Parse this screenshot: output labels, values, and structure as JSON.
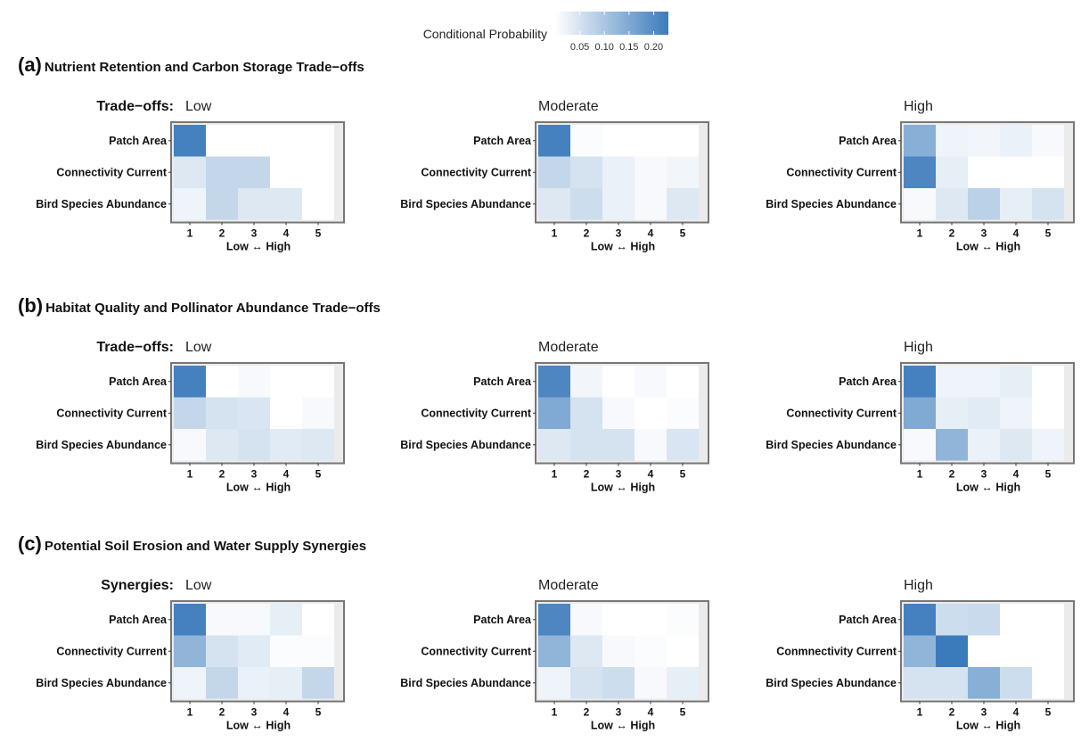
{
  "legend": {
    "title": "Conditional Probability",
    "ticks": [
      "0.05",
      "0.10",
      "0.15",
      "0.20"
    ],
    "colors": {
      "low": "#ffffff",
      "high": "#3c7bbb"
    }
  },
  "chart_data": {
    "type": "heatmap",
    "value_name": "Conditional Probability",
    "scale": [
      0,
      0.23
    ],
    "rows": [
      "Patch Area",
      "Connectivity Current",
      "Bird Species Abundance"
    ],
    "columns": [
      "1",
      "2",
      "3",
      "4",
      "5"
    ],
    "xlabel": "Low ↔ High",
    "panel_groups": [
      {
        "tag": "(a)",
        "title": "Nutrient Retention and Carbon Storage Trade−offs",
        "facet_prefix": "Trade−offs:",
        "panels": [
          {
            "level": "Low",
            "rows": [
              "Patch Area",
              "Connectivity Current",
              "Bird Species Abundance"
            ],
            "values": [
              [
                0.22,
                0,
                0,
                0,
                0
              ],
              [
                0.04,
                0.07,
                0.07,
                0,
                0
              ],
              [
                0.02,
                0.07,
                0.04,
                0.04,
                0
              ]
            ]
          },
          {
            "level": "Moderate",
            "rows": [
              "Patch Area",
              "Connectivity Current",
              "Bird Species Abundance"
            ],
            "values": [
              [
                0.22,
                0.005,
                0,
                0,
                0
              ],
              [
                0.07,
                0.05,
                0.025,
                0.01,
                0.015
              ],
              [
                0.04,
                0.06,
                0.025,
                0.01,
                0.04
              ]
            ]
          },
          {
            "level": "High",
            "rows": [
              "Patch Area",
              "Connectivity Current",
              "Bird Species Abundance"
            ],
            "values": [
              [
                0.14,
                0.02,
                0.015,
                0.025,
                0.01
              ],
              [
                0.21,
                0.03,
                0,
                0,
                0
              ],
              [
                0.01,
                0.04,
                0.08,
                0.03,
                0.05
              ]
            ]
          }
        ]
      },
      {
        "tag": "(b)",
        "title": "Habitat Quality and Pollinator Abundance Trade−offs",
        "facet_prefix": "Trade−offs:",
        "panels": [
          {
            "level": "Low",
            "rows": [
              "Patch Area",
              "Connectivity Current",
              "Bird Species Abundance"
            ],
            "values": [
              [
                0.22,
                0,
                0.01,
                0,
                0
              ],
              [
                0.07,
                0.05,
                0.045,
                0,
                0.01
              ],
              [
                0.01,
                0.04,
                0.05,
                0.035,
                0.04
              ]
            ]
          },
          {
            "level": "Moderate",
            "rows": [
              "Patch Area",
              "Connectivity Current",
              "Bird Species Abundance"
            ],
            "values": [
              [
                0.21,
                0.015,
                0,
                0.01,
                0
              ],
              [
                0.15,
                0.05,
                0.01,
                0,
                0.005
              ],
              [
                0.04,
                0.05,
                0.05,
                0.01,
                0.045
              ]
            ]
          },
          {
            "level": "High",
            "rows": [
              "Patch Area",
              "Connectivity Current",
              "Bird Species Abundance"
            ],
            "values": [
              [
                0.22,
                0.02,
                0.02,
                0.03,
                0
              ],
              [
                0.15,
                0.03,
                0.035,
                0.02,
                0
              ],
              [
                0.01,
                0.13,
                0.025,
                0.04,
                0.02
              ]
            ]
          }
        ]
      },
      {
        "tag": "(c)",
        "title": "Potential Soil Erosion and Water Supply Synergies",
        "facet_prefix": "Synergies:",
        "panels": [
          {
            "level": "Low",
            "rows": [
              "Patch Area",
              "Connectivity Current",
              "Bird Species Abundance"
            ],
            "values": [
              [
                0.22,
                0.01,
                0.01,
                0.03,
                0
              ],
              [
                0.13,
                0.05,
                0.035,
                0.005,
                0.005
              ],
              [
                0.02,
                0.07,
                0.025,
                0.03,
                0.07
              ]
            ]
          },
          {
            "level": "Moderate",
            "rows": [
              "Patch Area",
              "Connectivity Current",
              "Bird Species Abundance"
            ],
            "values": [
              [
                0.21,
                0.01,
                0,
                0,
                0.005
              ],
              [
                0.13,
                0.04,
                0.01,
                0.005,
                0
              ],
              [
                0.02,
                0.05,
                0.06,
                0.01,
                0.03
              ]
            ]
          },
          {
            "level": "High",
            "rows": [
              "Patch Area",
              "Conmnectivity Current",
              "Bird Species Abundance"
            ],
            "values": [
              [
                0.22,
                0.06,
                0.065,
                0,
                0
              ],
              [
                0.13,
                0.23,
                0,
                0,
                0
              ],
              [
                0.05,
                0.05,
                0.14,
                0.06,
                0
              ]
            ]
          }
        ]
      }
    ]
  }
}
